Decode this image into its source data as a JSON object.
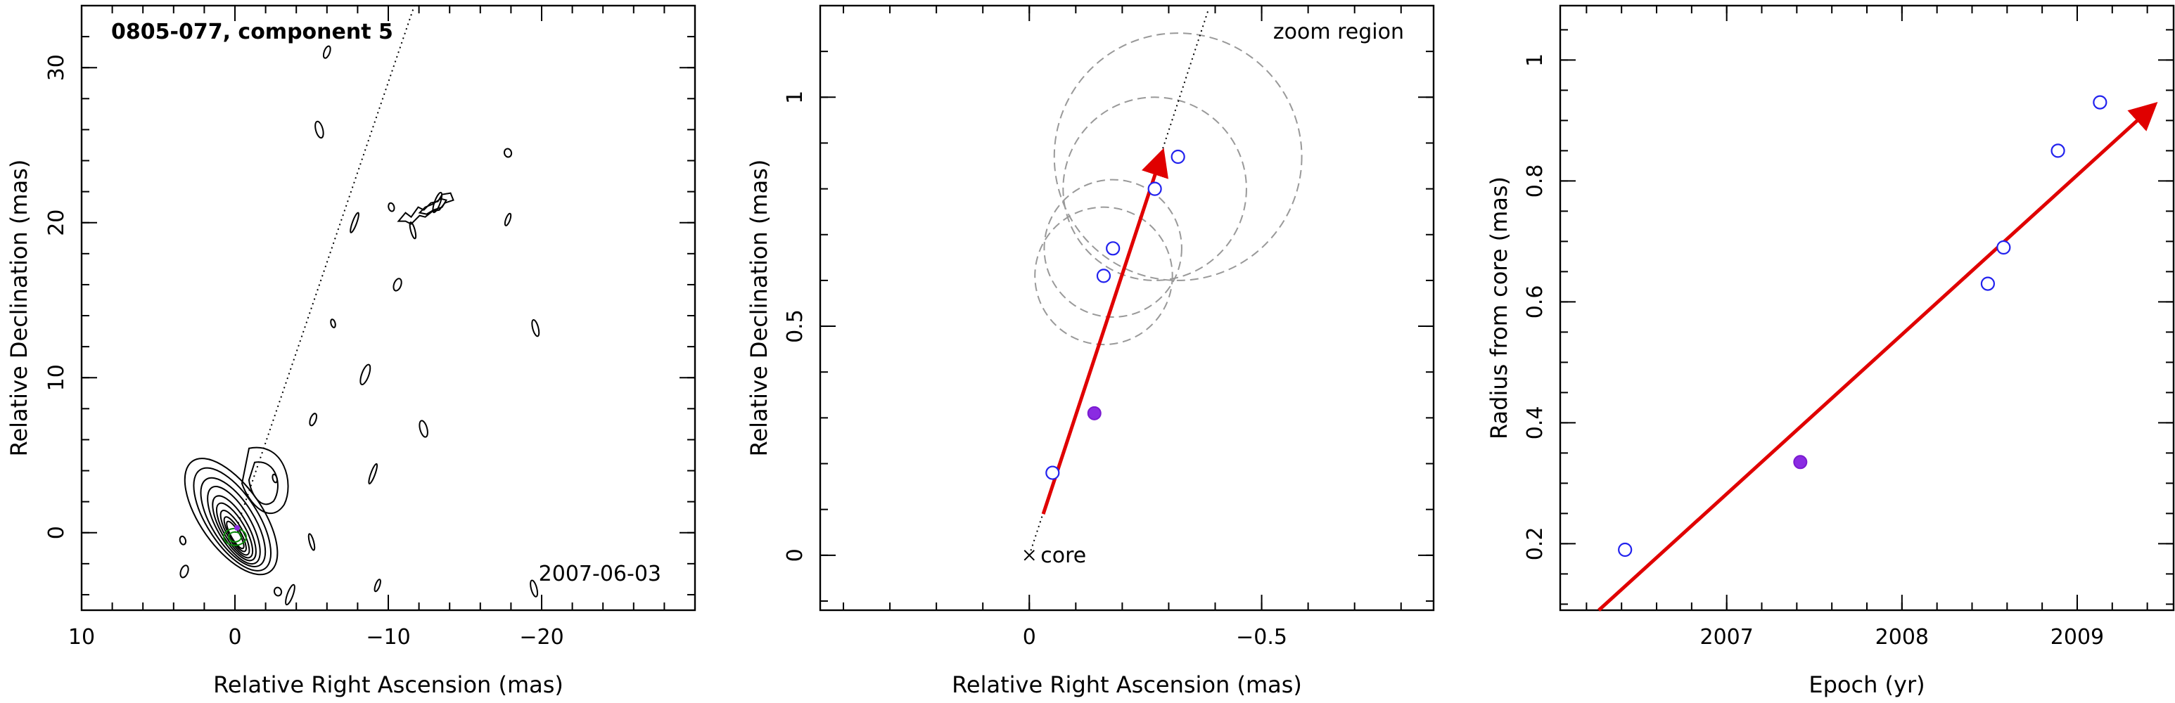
{
  "colors": {
    "open_marker": "#2222ee",
    "filled_marker": "#8a2be2",
    "velocity_arrow": "#e00000",
    "zoom_circle": "#999999",
    "contour": "#000000"
  },
  "chart_data": [
    {
      "type": "scatter",
      "panel": "contour image",
      "title": "0805-077, component 5",
      "annotation": "2007-06-03",
      "xlabel": "Relative Right Ascension (mas)",
      "ylabel": "Relative Declination (mas)",
      "xlim": [
        10,
        -30
      ],
      "ylim": [
        -5,
        34
      ],
      "xticks": [
        "10",
        "0",
        "−10",
        "−20"
      ],
      "yticks": [
        "0",
        "10",
        "20",
        "30"
      ],
      "jet_direction_line": {
        "x": [
          0,
          -11.7
        ],
        "y": [
          0,
          34
        ]
      },
      "component_position": {
        "x": -0.14,
        "y": 0.31
      },
      "contour_blobs": [
        {
          "x": 0,
          "y": 0
        },
        {
          "x": -2.6,
          "y": 3.5
        },
        {
          "x": -6,
          "y": 31
        },
        {
          "x": -5.5,
          "y": 26
        },
        {
          "x": -7.8,
          "y": 20
        },
        {
          "x": -10.2,
          "y": 21
        },
        {
          "x": -10.6,
          "y": 16
        },
        {
          "x": -11.6,
          "y": 19.5
        },
        {
          "x": -13.2,
          "y": 21.3
        },
        {
          "x": -17.8,
          "y": 24.5
        },
        {
          "x": -17.8,
          "y": 20.2
        },
        {
          "x": -19.6,
          "y": 13.2
        },
        {
          "x": -8.5,
          "y": 10.2
        },
        {
          "x": -6.4,
          "y": 13.5
        },
        {
          "x": -5.1,
          "y": 7.3
        },
        {
          "x": -12.3,
          "y": 6.7
        },
        {
          "x": -9,
          "y": 3.8
        },
        {
          "x": 3.4,
          "y": -0.5
        },
        {
          "x": 3.3,
          "y": -2.5
        },
        {
          "x": -5,
          "y": -0.6
        },
        {
          "x": -3.6,
          "y": -4
        },
        {
          "x": -2.8,
          "y": -3.8
        },
        {
          "x": -9.3,
          "y": -3.4
        },
        {
          "x": -19.5,
          "y": -3.6
        }
      ]
    },
    {
      "type": "scatter",
      "panel": "zoom on component positions",
      "annotation": "zoom region",
      "core_label": "core",
      "xlabel": "Relative Right Ascension (mas)",
      "ylabel": "Relative Declination (mas)",
      "xlim": [
        0.45,
        -0.87
      ],
      "ylim": [
        -0.12,
        1.2
      ],
      "xticks": [
        "0",
        "−0.5"
      ],
      "yticks": [
        "0",
        "0.5",
        "1"
      ],
      "open_points": [
        {
          "x": -0.05,
          "y": 0.18
        },
        {
          "x": -0.16,
          "y": 0.61
        },
        {
          "x": -0.18,
          "y": 0.67
        },
        {
          "x": -0.27,
          "y": 0.8
        },
        {
          "x": -0.32,
          "y": 0.87
        }
      ],
      "filled_points": [
        {
          "x": -0.14,
          "y": 0.31
        }
      ],
      "zoom_circles": [
        {
          "x": -0.16,
          "y": 0.61,
          "r": 0.15
        },
        {
          "x": -0.18,
          "y": 0.67,
          "r": 0.15
        },
        {
          "x": -0.27,
          "y": 0.8,
          "r": 0.2
        },
        {
          "x": -0.32,
          "y": 0.87,
          "r": 0.27
        }
      ],
      "velocity_vector": {
        "x": [
          -0.03,
          -0.28
        ],
        "y": [
          0.09,
          0.86
        ]
      },
      "jet_direction_line": {
        "x": [
          0,
          -0.385
        ],
        "y": [
          0,
          1.19
        ]
      }
    },
    {
      "type": "scatter",
      "panel": "radius vs epoch",
      "xlabel": "Epoch (yr)",
      "ylabel": "Radius from core (mas)",
      "xlim": [
        2006.05,
        2009.55
      ],
      "ylim": [
        0.09,
        1.09
      ],
      "xticks": [
        "2007",
        "2008",
        "2009"
      ],
      "yticks": [
        "0.2",
        "0.4",
        "0.6",
        "0.8",
        "1"
      ],
      "open_points": [
        {
          "x": 2006.42,
          "y": 0.19
        },
        {
          "x": 2008.49,
          "y": 0.63
        },
        {
          "x": 2008.58,
          "y": 0.69
        },
        {
          "x": 2008.89,
          "y": 0.85
        },
        {
          "x": 2009.13,
          "y": 0.93
        }
      ],
      "filled_points": [
        {
          "x": 2007.42,
          "y": 0.335
        }
      ],
      "fit_line": {
        "x": [
          2006.27,
          2009.4
        ],
        "y": [
          0.09,
          0.915
        ]
      }
    }
  ]
}
